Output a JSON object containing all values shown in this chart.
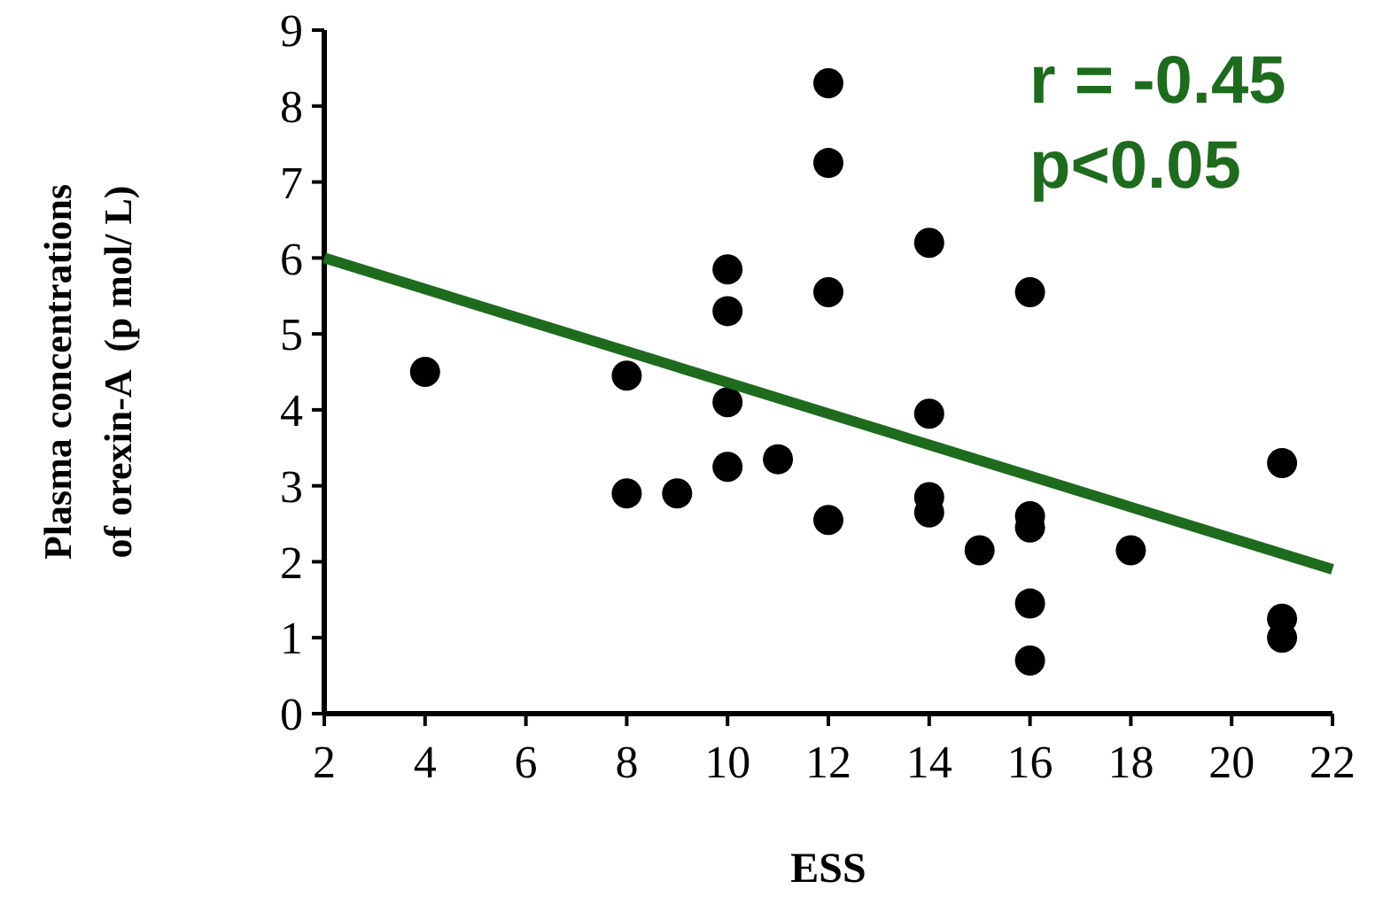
{
  "chart_data": {
    "type": "scatter",
    "xlabel": "ESS",
    "ylabel": "Plasma concentrations\nof orexin-A  (p mol/ L)",
    "xlim": [
      2,
      22
    ],
    "ylim": [
      0,
      9
    ],
    "xticks": [
      2,
      4,
      6,
      8,
      10,
      12,
      14,
      16,
      18,
      20,
      22
    ],
    "yticks": [
      0,
      1,
      2,
      3,
      4,
      5,
      6,
      7,
      8,
      9
    ],
    "marker": "circle",
    "grid": false,
    "annotations": [
      "r = -0.45",
      "p<0.05"
    ],
    "series": [
      {
        "color": "#000000",
        "x": [
          4,
          8,
          8,
          9,
          10,
          10,
          10,
          10,
          11,
          12,
          12,
          12,
          12,
          14,
          14,
          14,
          14,
          15,
          16,
          16,
          16,
          16,
          16,
          18,
          21,
          21,
          21
        ],
        "values": [
          4.5,
          4.45,
          2.9,
          2.9,
          5.85,
          5.3,
          4.1,
          3.25,
          3.35,
          8.3,
          7.25,
          5.55,
          2.55,
          6.2,
          3.95,
          2.85,
          2.65,
          2.15,
          5.55,
          2.6,
          2.45,
          1.45,
          0.7,
          2.15,
          3.3,
          1.25,
          1.0
        ]
      },
      {
        "type": "line",
        "color": "#1e6b1e",
        "line_style": "solid",
        "marker": "none",
        "x": [
          2,
          22
        ],
        "values": [
          6.0,
          1.9
        ]
      }
    ]
  }
}
